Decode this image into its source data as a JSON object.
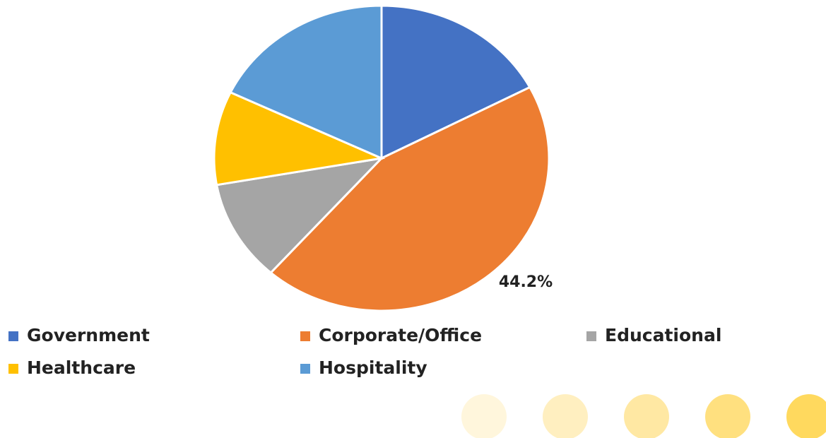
{
  "chart_data": {
    "type": "pie",
    "categories": [
      "Government",
      "Corporate/Office",
      "Educational",
      "Healthcare",
      "Hospitality"
    ],
    "values": [
      17.3,
      44.2,
      10.7,
      9.9,
      17.9
    ],
    "value_labels": [
      null,
      "44.2%",
      null,
      null,
      null
    ],
    "colors": [
      "#4472c4",
      "#ed7d31",
      "#a5a5a5",
      "#ffc000",
      "#5b9bd5"
    ],
    "legend": "bottom"
  }
}
